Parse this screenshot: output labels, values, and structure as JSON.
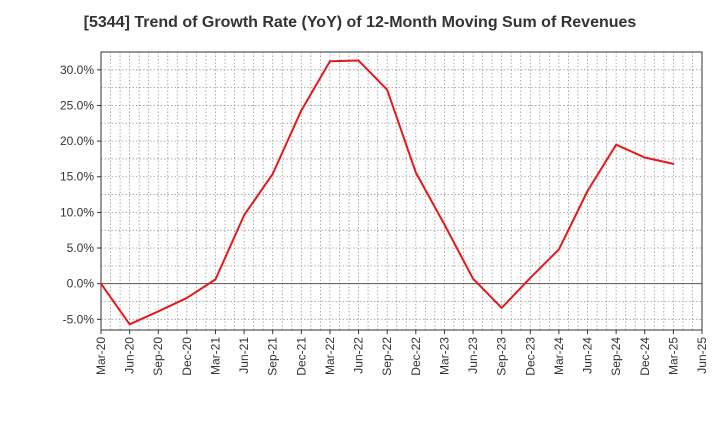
{
  "chart_data": {
    "type": "line",
    "title": "[5344]  Trend of Growth Rate (YoY) of 12-Month Moving Sum of Revenues",
    "xlabel": "",
    "ylabel": "",
    "x_ticks": [
      "Mar-20",
      "Jun-20",
      "Sep-20",
      "Dec-20",
      "Mar-21",
      "Jun-21",
      "Sep-21",
      "Dec-21",
      "Mar-22",
      "Jun-22",
      "Sep-22",
      "Dec-22",
      "Mar-23",
      "Jun-23",
      "Sep-23",
      "Dec-23",
      "Mar-24",
      "Jun-24",
      "Sep-24",
      "Dec-24",
      "Mar-25",
      "Jun-25"
    ],
    "y_ticks": [
      30.0,
      25.0,
      20.0,
      15.0,
      10.0,
      5.0,
      0.0,
      -5.0
    ],
    "y_tick_labels": [
      "30.0%",
      "25.0%",
      "20.0%",
      "15.0%",
      "10.0%",
      "5.0%",
      "0.0%",
      "-5.0%"
    ],
    "ylim": [
      -6.5,
      32.5
    ],
    "grid": true,
    "series": [
      {
        "color": "#e31a1c",
        "x": [
          "Mar-20",
          "Jun-20",
          "Sep-20",
          "Dec-20",
          "Mar-21",
          "Jun-21",
          "Sep-21",
          "Dec-21",
          "Mar-22",
          "Jun-22",
          "Sep-22",
          "Dec-22",
          "Mar-23",
          "Jun-23",
          "Sep-23",
          "Dec-23",
          "Mar-24",
          "Jun-24",
          "Sep-24",
          "Dec-24",
          "Mar-25"
        ],
        "values": [
          0.0,
          -5.7,
          -3.9,
          -2.0,
          0.6,
          9.6,
          15.4,
          24.3,
          31.2,
          31.3,
          27.2,
          15.6,
          8.3,
          0.7,
          -3.4,
          0.8,
          4.8,
          13.0,
          19.5,
          17.7,
          16.8
        ]
      }
    ]
  }
}
